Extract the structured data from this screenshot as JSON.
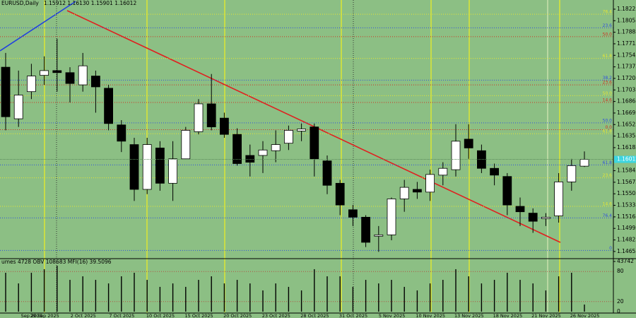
{
  "chart_data": [
    {
      "type": "candlestick",
      "title": "EURUSD,Daily",
      "ohlc_text": "1.15912 1.16130 1.15901 1.16012",
      "categories": [
        "Sep 2025",
        "29 Sep 2025",
        null,
        null,
        "2 Oct 2025",
        null,
        null,
        "7 Oct 2025",
        null,
        null,
        "10 Oct 2025",
        null,
        null,
        "15 Oct 2025",
        null,
        null,
        "20 Oct 2025",
        null,
        null,
        "23 Oct 2025",
        null,
        null,
        "28 Oct 2025",
        null,
        null,
        "31 Oct 2025",
        null,
        null,
        "5 Nov 2025",
        null,
        null,
        "10 Nov 2025",
        null,
        null,
        "13 Nov 2025",
        null,
        null,
        "18 Nov 2025",
        null,
        null,
        "21 Nov 2025",
        null,
        null,
        "26 Nov 2025",
        null,
        null
      ],
      "open": [
        1.1737,
        1.1661,
        1.1701,
        1.1725,
        1.1732,
        1.1729,
        1.1711,
        1.1724,
        1.1706,
        1.1652,
        1.1623,
        1.1557,
        1.1618,
        1.1566,
        1.1602,
        1.1642,
        1.1683,
        1.1662,
        1.1638,
        1.1607,
        1.1607,
        1.1614,
        1.1625,
        1.1643,
        1.1649,
        1.1599,
        1.1566,
        1.1527,
        1.1516,
        1.1488,
        1.149,
        1.1543,
        1.1557,
        1.1553,
        1.1578,
        1.1586,
        1.1631,
        1.1614,
        1.1588,
        1.1576,
        1.1532,
        1.1522,
        1.1514,
        1.1518,
        1.1568,
        1.15912
      ],
      "high": [
        1.1758,
        1.1732,
        1.1742,
        1.1753,
        1.1779,
        1.1737,
        1.1758,
        1.1732,
        1.1711,
        1.1659,
        1.1633,
        1.1633,
        1.1628,
        1.1628,
        1.1649,
        1.169,
        1.1727,
        1.167,
        1.1647,
        1.1623,
        1.1628,
        1.1644,
        1.1651,
        1.1654,
        1.1654,
        1.1607,
        1.1571,
        1.1534,
        1.1519,
        1.1503,
        1.1545,
        1.1571,
        1.1568,
        1.1586,
        1.1597,
        1.1653,
        1.1653,
        1.1623,
        1.1595,
        1.1581,
        1.1545,
        1.1529,
        1.1522,
        1.1581,
        1.1602,
        1.1613
      ],
      "low": [
        1.1644,
        1.1649,
        1.169,
        1.1711,
        1.1701,
        1.1685,
        1.1701,
        1.167,
        1.1644,
        1.1612,
        1.154,
        1.155,
        1.1555,
        1.154,
        1.1602,
        1.1638,
        1.1644,
        1.1633,
        1.1592,
        1.1576,
        1.1581,
        1.1597,
        1.1615,
        1.1628,
        1.1576,
        1.155,
        1.1519,
        1.1503,
        1.1472,
        1.1465,
        1.1482,
        1.1524,
        1.1543,
        1.154,
        1.1563,
        1.1576,
        1.1602,
        1.1581,
        1.1563,
        1.1519,
        1.1503,
        1.1493,
        1.1503,
        1.1508,
        1.1555,
        1.15901
      ],
      "close": [
        1.1664,
        1.1696,
        1.1724,
        1.1732,
        1.1729,
        1.1713,
        1.1739,
        1.1708,
        1.1654,
        1.1628,
        1.1557,
        1.1623,
        1.1566,
        1.1602,
        1.1644,
        1.1683,
        1.1649,
        1.1638,
        1.1595,
        1.1597,
        1.1615,
        1.1623,
        1.1644,
        1.1646,
        1.1602,
        1.1563,
        1.1534,
        1.1516,
        1.1479,
        1.149,
        1.1543,
        1.156,
        1.1553,
        1.1579,
        1.1588,
        1.1628,
        1.1618,
        1.1588,
        1.1578,
        1.1534,
        1.1524,
        1.151,
        1.1516,
        1.1568,
        1.1592,
        1.16012
      ],
      "up_color": "#ffffff",
      "down_color": "#000000",
      "ylim": [
        1.1456,
        1.1836
      ],
      "yticks": [
        1.18225,
        1.18055,
        1.17885,
        1.17715,
        1.17545,
        1.17375,
        1.17205,
        1.17035,
        1.16865,
        1.16695,
        1.16525,
        1.16355,
        1.16185,
        1.15845,
        1.15675,
        1.15505,
        1.15335,
        1.15165,
        1.14995,
        1.14825,
        1.14655
      ],
      "levels": [
        {
          "label": "76.4",
          "value": 1.1815,
          "color": "#e8e830"
        },
        {
          "label": "23.6",
          "value": 1.1795,
          "color": "#2f4fe0"
        },
        {
          "label": "50.0",
          "value": 1.1782,
          "color": "#d03020"
        },
        {
          "label": "61.8",
          "value": 1.175,
          "color": "#e8e830"
        },
        {
          "label": "38.2",
          "value": 1.1718,
          "color": "#2f4fe0"
        },
        {
          "label": "23.6",
          "value": 1.1711,
          "color": "#d03020"
        },
        {
          "label": "50.0",
          "value": 1.1695,
          "color": "#e8e830"
        },
        {
          "label": "14.6",
          "value": 1.1685,
          "color": "#d03020"
        },
        {
          "label": "50.0",
          "value": 1.1655,
          "color": "#2f4fe0"
        },
        {
          "label": "0.0",
          "value": 1.1645,
          "color": "#d03020"
        },
        {
          "label": "61.8",
          "value": 1.1639,
          "color": "#e8e830"
        },
        {
          "label": "61.8",
          "value": 1.1593,
          "color": "#2f4fe0"
        },
        {
          "label": "23.6",
          "value": 1.1574,
          "color": "#e8e830"
        },
        {
          "label": "14.6",
          "value": 1.1532,
          "color": "#e8e830"
        },
        {
          "label": "76.4",
          "value": 1.1515,
          "color": "#2f4fe0"
        },
        {
          "label": "0",
          "value": 1.1467,
          "color": "#2f4fe0"
        }
      ]
    },
    {
      "type": "bar",
      "title": "umes 4728 OBV 108683 MFI(16) 39.5096",
      "values": [
        33900,
        24600,
        33900,
        37000,
        40000,
        27700,
        30800,
        27700,
        24600,
        30800,
        33900,
        27700,
        21600,
        24600,
        21600,
        27700,
        30800,
        24600,
        27700,
        24600,
        18500,
        24600,
        21600,
        18500,
        37000,
        30800,
        30800,
        21600,
        27700,
        24600,
        27700,
        21600,
        18500,
        24600,
        27700,
        37000,
        30800,
        24600,
        27700,
        33900,
        27700,
        24600,
        18500,
        30800,
        33900,
        6200
      ],
      "color": "#000000",
      "ylim": [
        0,
        43742
      ],
      "yticks": [
        43742
      ],
      "y2lim": [
        0,
        100
      ],
      "y2ticks": [
        80,
        20,
        0
      ],
      "y2_level_color": "#b05040"
    }
  ]
}
